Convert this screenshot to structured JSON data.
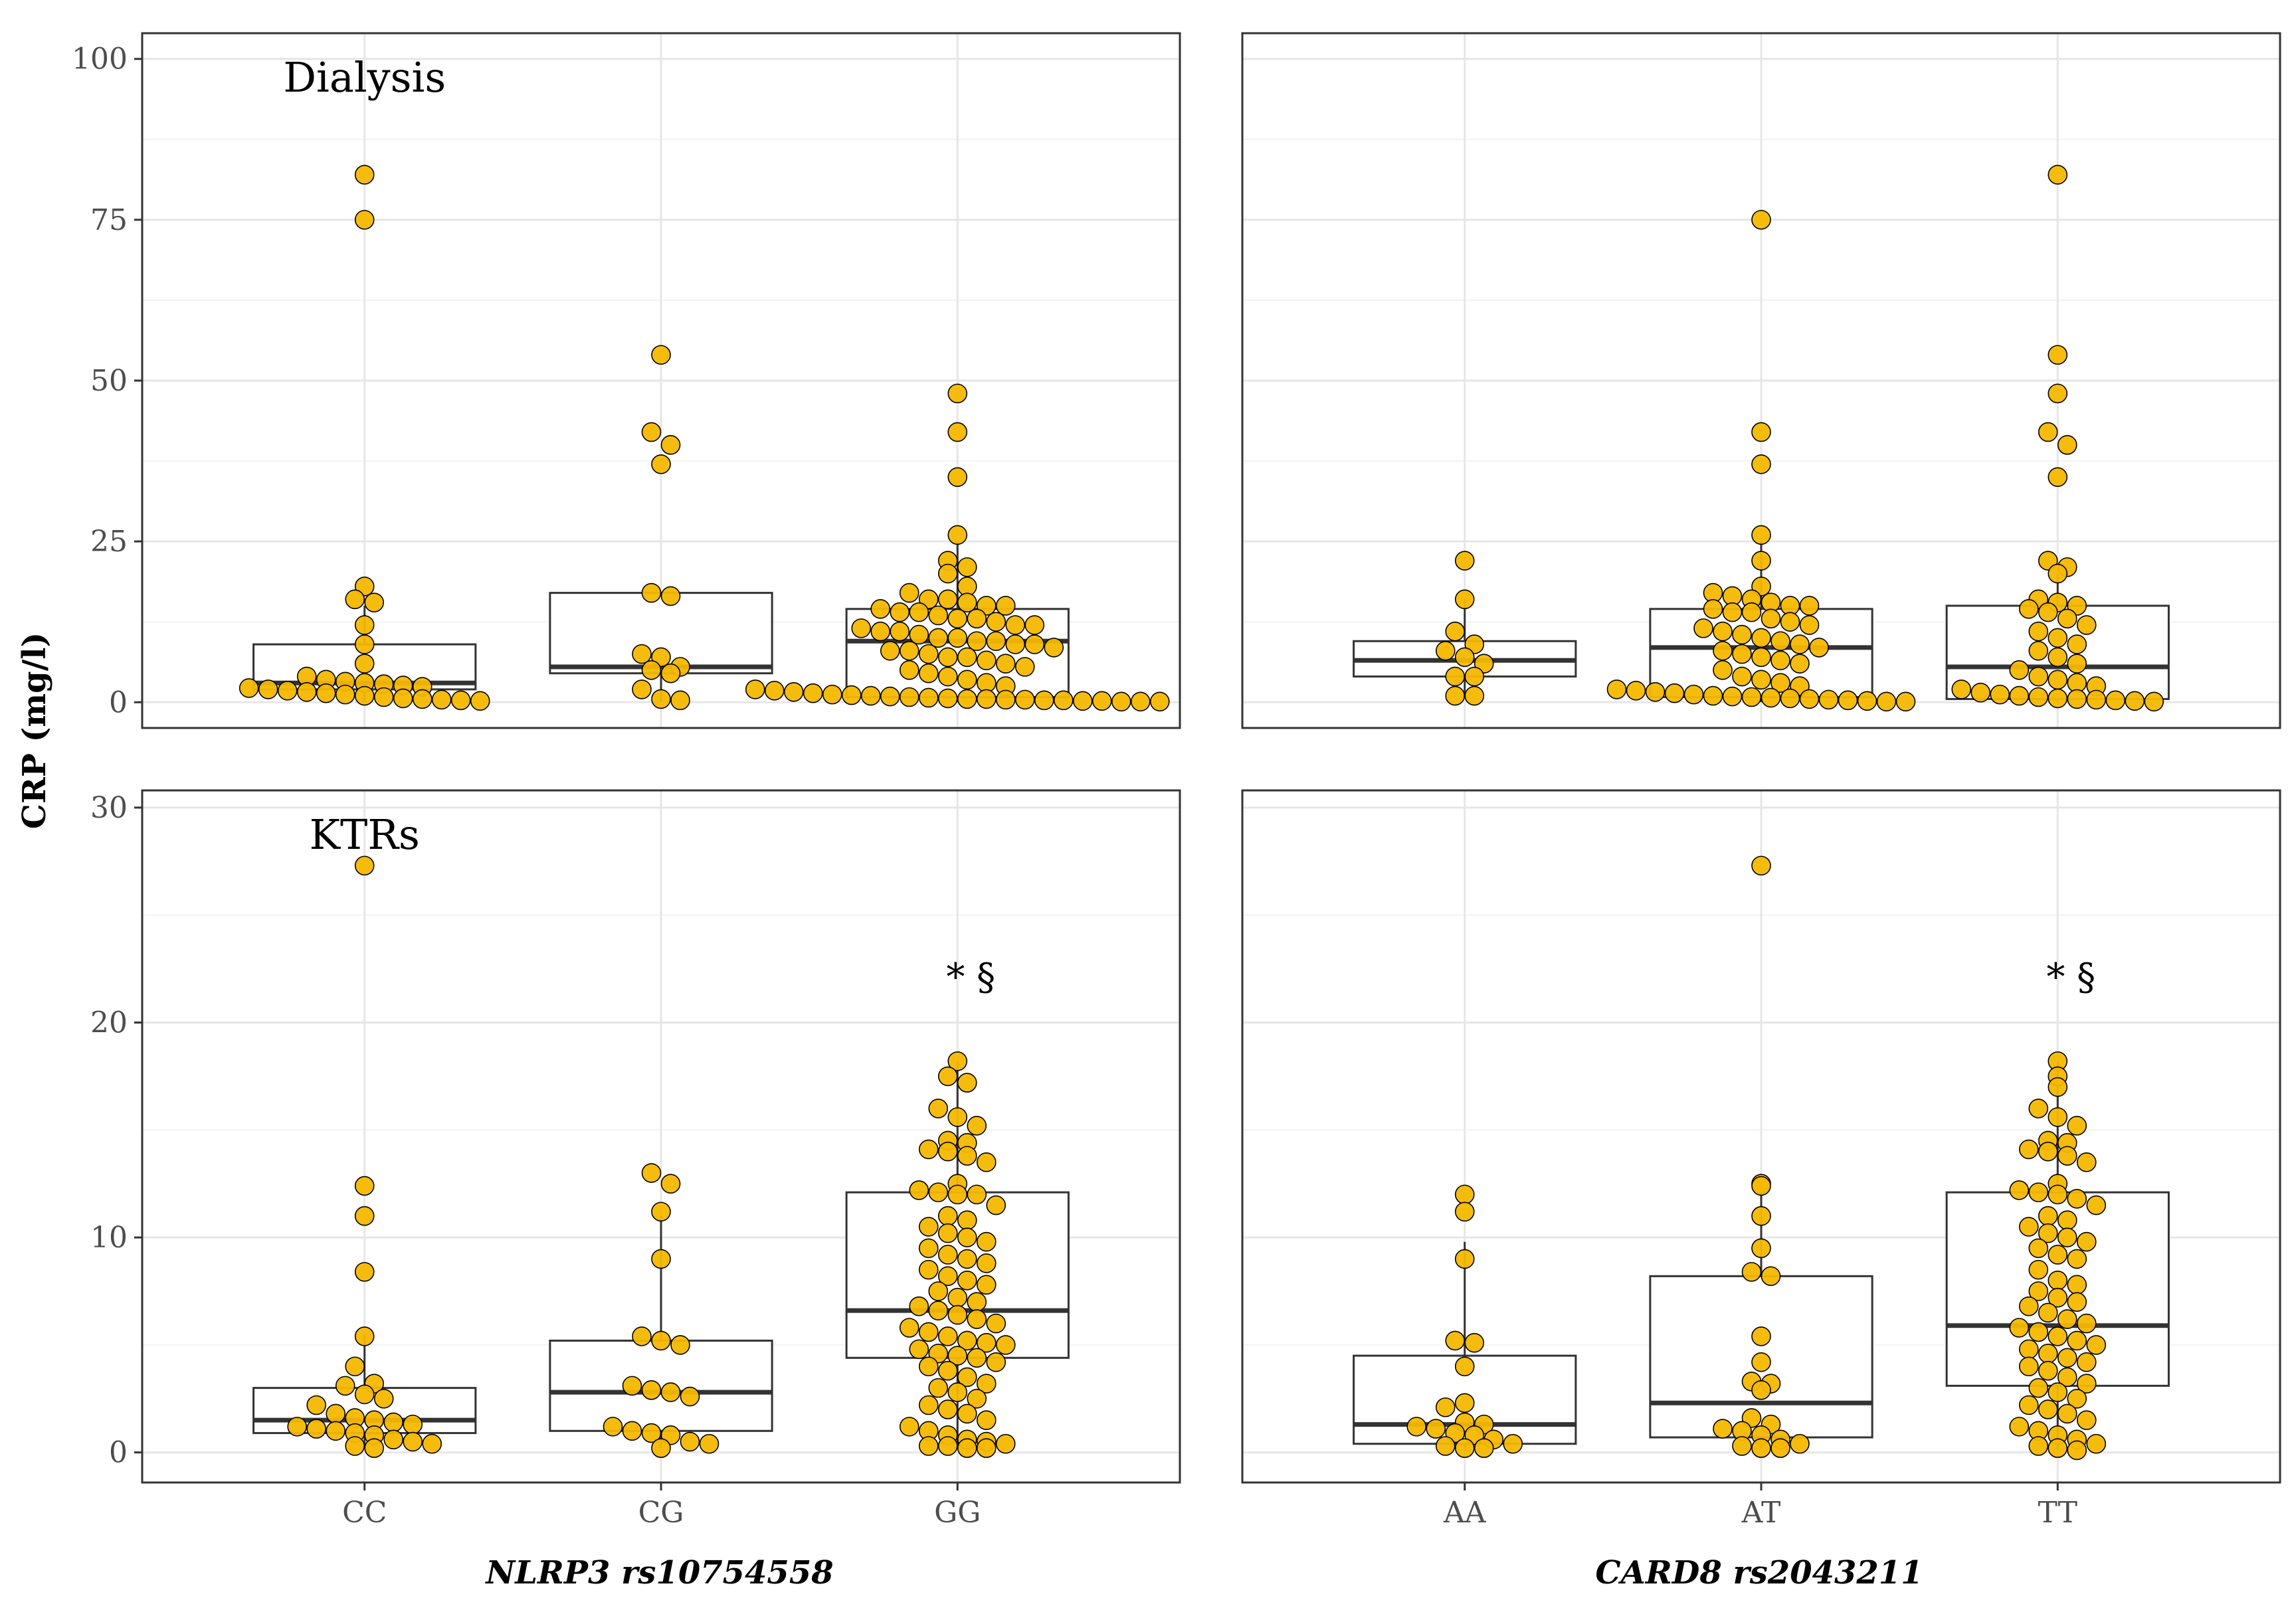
{
  "chart_data": {
    "type": "box+dotplot",
    "ylabel": "CRP (mg/l)",
    "point_color": "#F5B800",
    "panels": [
      {
        "row": "top",
        "col": "left",
        "annotation": "Dialysis",
        "ylim": [
          -4,
          104
        ],
        "yticks": [
          0,
          25,
          50,
          75,
          100
        ],
        "groups": [
          {
            "label": "CC",
            "box": {
              "q1": 2.0,
              "median": 3.0,
              "q3": 9.0,
              "whisker_low": 0,
              "whisker_high": 15
            },
            "points": [
              82,
              75,
              18,
              16,
              15.5,
              12,
              9,
              6,
              4,
              3.5,
              3.2,
              3,
              2.8,
              2.6,
              2.4,
              2.2,
              2,
              1.8,
              1.6,
              1.4,
              1.2,
              1,
              0.8,
              0.6,
              0.5,
              0.4,
              0.3,
              0.2
            ]
          },
          {
            "label": "CG",
            "box": {
              "q1": 4.5,
              "median": 5.5,
              "q3": 17.0,
              "whisker_low": 0,
              "whisker_high": 17
            },
            "points": [
              54,
              42,
              40,
              37,
              17,
              16.5,
              7.5,
              7,
              5.5,
              5,
              4.5,
              2,
              0.5,
              0.3
            ]
          },
          {
            "label": "GG",
            "box": {
              "q1": 0.8,
              "median": 9.5,
              "q3": 14.5,
              "whisker_low": 0,
              "whisker_high": 25
            },
            "points": [
              48,
              42,
              35,
              26,
              22,
              21,
              20,
              18,
              17,
              16,
              16,
              15.5,
              15,
              15,
              14.5,
              14,
              14,
              13.5,
              13,
              13,
              12.5,
              12,
              12,
              11.5,
              11,
              11,
              10.5,
              10,
              10,
              9.5,
              9.5,
              9,
              9,
              8.5,
              8,
              8,
              7.5,
              7,
              7,
              6.5,
              6,
              5.5,
              5,
              4.5,
              4,
              3.5,
              3,
              2.5,
              2,
              1.8,
              1.6,
              1.4,
              1.2,
              1.1,
              1,
              0.9,
              0.8,
              0.7,
              0.6,
              0.5,
              0.5,
              0.4,
              0.4,
              0.3,
              0.3,
              0.2,
              0.2,
              0.1,
              0.1,
              0.1
            ]
          }
        ]
      },
      {
        "row": "top",
        "col": "right",
        "annotation": "",
        "ylim": [
          -4,
          104
        ],
        "yticks": [
          0,
          25,
          50,
          75,
          100
        ],
        "groups": [
          {
            "label": "AA",
            "box": {
              "q1": 4.0,
              "median": 6.5,
              "q3": 9.5,
              "whisker_low": 1,
              "whisker_high": 16
            },
            "points": [
              22,
              16,
              11,
              9,
              8,
              7,
              6,
              4,
              4,
              1,
              1
            ]
          },
          {
            "label": "AT",
            "box": {
              "q1": 0.8,
              "median": 8.5,
              "q3": 14.5,
              "whisker_low": 0,
              "whisker_high": 25
            },
            "points": [
              75,
              42,
              37,
              26,
              22,
              18,
              17,
              16.5,
              16,
              15.5,
              15,
              15,
              14.5,
              14,
              14,
              13,
              12.5,
              12,
              11.5,
              11,
              10.5,
              10,
              9.5,
              9,
              8.5,
              8,
              7.5,
              7,
              6.5,
              6,
              5,
              4,
              3.5,
              3,
              2.5,
              2,
              1.8,
              1.6,
              1.4,
              1.2,
              1,
              0.9,
              0.8,
              0.7,
              0.6,
              0.5,
              0.4,
              0.3,
              0.2,
              0.1,
              0.1
            ]
          },
          {
            "label": "TT",
            "box": {
              "q1": 0.5,
              "median": 5.5,
              "q3": 15.0,
              "whisker_low": 0,
              "whisker_high": 20
            },
            "points": [
              82,
              54,
              48,
              42,
              40,
              35,
              22,
              21,
              20,
              16,
              15.5,
              15,
              14.5,
              14,
              13,
              12,
              11,
              10,
              9,
              8,
              7,
              6,
              5,
              4,
              3.5,
              3,
              2.5,
              2,
              1.5,
              1.2,
              1,
              0.8,
              0.6,
              0.5,
              0.4,
              0.3,
              0.2,
              0.1
            ]
          }
        ]
      },
      {
        "row": "bottom",
        "col": "left",
        "annotation": "KTRs",
        "ylim": [
          -1.4,
          30.8
        ],
        "yticks": [
          0,
          10,
          20,
          30
        ],
        "groups": [
          {
            "label": "CC",
            "box": {
              "q1": 0.9,
              "median": 1.5,
              "q3": 3.0,
              "whisker_low": 0.2,
              "whisker_high": 5.5
            },
            "star": "",
            "points": [
              27.3,
              12.4,
              11,
              8.4,
              5.4,
              4,
              3.2,
              3.1,
              2.7,
              2.5,
              2.2,
              1.8,
              1.6,
              1.5,
              1.4,
              1.3,
              1.2,
              1.1,
              1,
              0.9,
              0.8,
              0.6,
              0.5,
              0.4,
              0.3,
              0.2
            ]
          },
          {
            "label": "CG",
            "box": {
              "q1": 1.0,
              "median": 2.8,
              "q3": 5.2,
              "whisker_low": 0.2,
              "whisker_high": 11
            },
            "star": "",
            "points": [
              13,
              12.5,
              11.2,
              9,
              5.4,
              5.2,
              5,
              3.1,
              2.9,
              2.8,
              2.6,
              1.2,
              1,
              0.9,
              0.8,
              0.5,
              0.4,
              0.2
            ]
          },
          {
            "label": "GG",
            "box": {
              "q1": 4.4,
              "median": 6.6,
              "q3": 12.1,
              "whisker_low": 0.2,
              "whisker_high": 18.2
            },
            "star": "* §",
            "points": [
              18.2,
              17.5,
              17.2,
              16,
              15.6,
              15.2,
              14.5,
              14.4,
              14.1,
              14,
              13.8,
              13.5,
              12.5,
              12.2,
              12.1,
              12,
              12,
              11.5,
              11,
              10.8,
              10.5,
              10.2,
              10,
              9.8,
              9.5,
              9.2,
              9,
              8.8,
              8.5,
              8.2,
              8,
              7.8,
              7.5,
              7.2,
              7,
              6.8,
              6.6,
              6.4,
              6.2,
              6,
              5.8,
              5.6,
              5.4,
              5.2,
              5.1,
              5,
              4.8,
              4.6,
              4.5,
              4.4,
              4.2,
              4,
              3.8,
              3.5,
              3.2,
              3,
              2.8,
              2.5,
              2.2,
              2,
              1.8,
              1.5,
              1.2,
              1,
              0.8,
              0.6,
              0.5,
              0.4,
              0.3,
              0.3,
              0.2,
              0.2
            ]
          }
        ]
      },
      {
        "row": "bottom",
        "col": "right",
        "annotation": "",
        "ylim": [
          -1.4,
          30.8
        ],
        "yticks": [
          0,
          10,
          20,
          30
        ],
        "groups": [
          {
            "label": "AA",
            "box": {
              "q1": 0.4,
              "median": 1.3,
              "q3": 4.5,
              "whisker_low": 0.1,
              "whisker_high": 9.8
            },
            "star": "",
            "points": [
              12,
              11.2,
              9,
              5.2,
              5.1,
              4,
              2.3,
              2.1,
              1.4,
              1.3,
              1.2,
              1.1,
              0.9,
              0.8,
              0.6,
              0.4,
              0.3,
              0.2,
              0.2
            ]
          },
          {
            "label": "AT",
            "box": {
              "q1": 0.7,
              "median": 2.3,
              "q3": 8.2,
              "whisker_low": 0.2,
              "whisker_high": 12.5
            },
            "star": "",
            "points": [
              27.3,
              12.4,
              12.5,
              11,
              9.5,
              8.4,
              8.2,
              5.4,
              4.2,
              3.3,
              3.2,
              2.9,
              1.6,
              1.3,
              1.1,
              1,
              0.8,
              0.6,
              0.4,
              0.3,
              0.2,
              0.2
            ]
          },
          {
            "label": "TT",
            "box": {
              "q1": 3.1,
              "median": 5.9,
              "q3": 12.1,
              "whisker_low": 0.1,
              "whisker_high": 18.2
            },
            "star": "* §",
            "points": [
              18.2,
              17.5,
              17,
              16,
              15.6,
              15.2,
              14.5,
              14.4,
              14.1,
              14,
              13.8,
              13.5,
              12.5,
              12.2,
              12.1,
              12,
              11.8,
              11.5,
              11,
              10.8,
              10.5,
              10.2,
              10,
              9.8,
              9.5,
              9.2,
              9,
              8.5,
              8,
              7.8,
              7.5,
              7.2,
              7,
              6.8,
              6.5,
              6.2,
              6,
              5.8,
              5.6,
              5.4,
              5.2,
              5,
              4.8,
              4.6,
              4.4,
              4.2,
              4,
              3.8,
              3.5,
              3.2,
              3,
              2.8,
              2.5,
              2.2,
              2,
              1.8,
              1.5,
              1.2,
              1,
              0.8,
              0.6,
              0.4,
              0.3,
              0.2,
              0.1
            ]
          }
        ]
      }
    ],
    "xlabels": {
      "left": "NLRP3 rs10754558",
      "right": "CARD8 rs2043211"
    }
  }
}
